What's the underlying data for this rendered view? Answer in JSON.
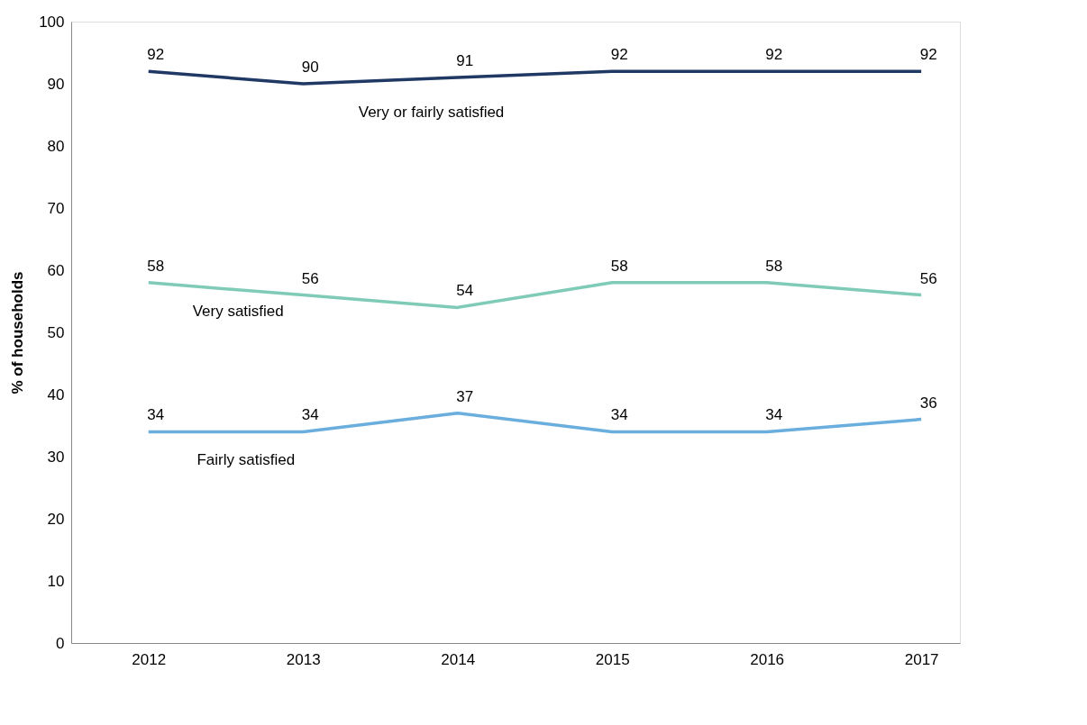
{
  "chart_data": {
    "type": "line",
    "ylabel": "% of households",
    "categories": [
      "2012",
      "2013",
      "2014",
      "2015",
      "2016",
      "2017"
    ],
    "series": [
      {
        "name": "Very or fairly satisfied",
        "color": "#1f3864",
        "values": [
          92,
          90,
          91,
          92,
          92,
          92
        ]
      },
      {
        "name": "Very satisfied",
        "color": "#7fcbb8",
        "values": [
          58,
          56,
          54,
          58,
          58,
          56
        ]
      },
      {
        "name": "Fairly satisfied",
        "color": "#6aaede",
        "values": [
          34,
          34,
          37,
          34,
          34,
          36
        ]
      }
    ],
    "ylim": [
      0,
      100
    ],
    "yticks": [
      0,
      10,
      20,
      30,
      40,
      50,
      60,
      70,
      80,
      90,
      100
    ],
    "data_labels": true,
    "grid": false,
    "legend": false,
    "marker": "none",
    "line_style": "solid"
  }
}
